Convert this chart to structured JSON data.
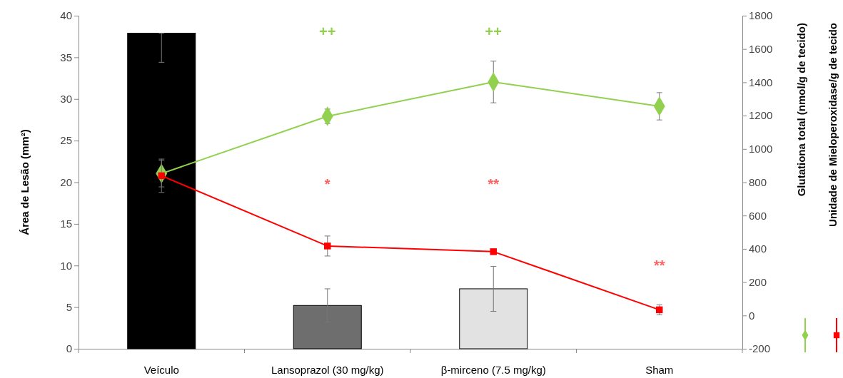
{
  "chart_data": {
    "type": "bar",
    "categories": [
      "Veículo",
      "Lansoprazol (30 mg/kg)",
      "β-mirceno (7.5 mg/kg)",
      "Sham"
    ],
    "ylabel": "Área de Lesão (mm²)",
    "y2label": "Glutationa total (nmol/g de tecido)",
    "y3label": "Unidade de Mieloperoxidase/g de tecido",
    "ylim": [
      0,
      40
    ],
    "yticks": [
      0,
      5,
      10,
      15,
      20,
      25,
      30,
      35,
      40
    ],
    "y2lim": [
      -200,
      1800
    ],
    "y2ticks": [
      -200,
      0,
      200,
      400,
      600,
      800,
      1000,
      1200,
      1400,
      1600,
      1800
    ],
    "series": [
      {
        "colors": [
          "#000000",
          "#6e6e6e",
          "#e2e2e2",
          null
        ],
        "values": [
          37.9,
          5.2,
          7.2,
          null
        ],
        "errors": [
          [
            34.4,
            37.9
          ],
          2,
          2.7,
          null
        ]
      },
      {
        "type": "line",
        "axis": "y2",
        "color": "#92d050",
        "marker": "diamond",
        "values": [
          852,
          1196,
          1402,
          1256
        ],
        "errors": [
          80,
          43,
          125,
          82
        ]
      },
      {
        "type": "line",
        "axis": "y2",
        "color": "#ff0000",
        "marker": "square",
        "values": [
          839,
          417,
          383,
          34
        ],
        "errors": [
          100,
          60,
          null,
          30
        ]
      }
    ],
    "annotations": [
      "++",
      "++",
      "*",
      "**",
      "**"
    ]
  }
}
